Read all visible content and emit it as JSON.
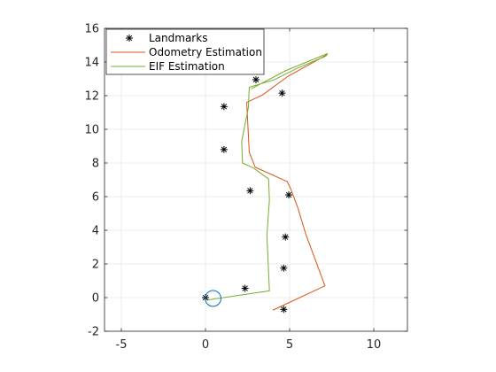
{
  "chart_data": {
    "type": "line",
    "title": "",
    "xlabel": "",
    "ylabel": "",
    "xlim": [
      -6,
      12
    ],
    "ylim": [
      -2,
      16
    ],
    "x_ticks": [
      -5,
      0,
      5,
      10
    ],
    "y_ticks": [
      -2,
      0,
      2,
      4,
      6,
      8,
      10,
      12,
      14,
      16
    ],
    "x_tick_labels": [
      "-5",
      "0",
      "5",
      "10"
    ],
    "y_tick_labels": [
      "-2",
      "0",
      "2",
      "4",
      "6",
      "8",
      "10",
      "12",
      "14",
      "16"
    ],
    "grid": true,
    "legend_position": "top-left",
    "colors": {
      "axis": "#262626",
      "grid": "#e6e6e6",
      "landmarks": "#000000",
      "odometry": "#d95319",
      "eif": "#77ac30",
      "robot": "#0072bd"
    },
    "legend": [
      {
        "label": "Landmarks",
        "key": "landmarks"
      },
      {
        "label": "Odometry Estimation",
        "key": "odometry"
      },
      {
        "label": "EIF Estimation",
        "key": "eif"
      }
    ],
    "landmarks": {
      "name": "Landmarks",
      "marker": "asterisk",
      "points": [
        {
          "x": 0.0,
          "y": 0.0
        },
        {
          "x": 2.35,
          "y": 0.55
        },
        {
          "x": 4.65,
          "y": -0.7
        },
        {
          "x": 4.65,
          "y": 1.75
        },
        {
          "x": 4.75,
          "y": 3.6
        },
        {
          "x": 4.95,
          "y": 6.1
        },
        {
          "x": 2.65,
          "y": 6.35
        },
        {
          "x": 1.1,
          "y": 8.8
        },
        {
          "x": 1.1,
          "y": 11.35
        },
        {
          "x": 4.55,
          "y": 12.15
        },
        {
          "x": 3.0,
          "y": 12.95
        }
      ]
    },
    "series": [
      {
        "name": "Odometry Estimation",
        "key": "odometry",
        "x": [
          4.0,
          7.1,
          5.95,
          5.5,
          5.05,
          4.85,
          2.95,
          2.6,
          2.45,
          3.4,
          4.9,
          7.25
        ],
        "y": [
          -0.75,
          0.7,
          3.8,
          5.3,
          6.5,
          6.9,
          7.75,
          8.65,
          11.6,
          12.05,
          13.15,
          14.45
        ]
      },
      {
        "name": "EIF Estimation",
        "key": "eif",
        "x": [
          0.05,
          3.8,
          3.65,
          3.8,
          3.75,
          2.85,
          2.2,
          2.15,
          2.55,
          2.6,
          4.1,
          5.4,
          7.15,
          7.25,
          4.8,
          2.7
        ],
        "y": [
          -0.15,
          0.4,
          3.7,
          5.8,
          7.05,
          7.7,
          8.0,
          9.3,
          11.3,
          12.5,
          12.95,
          13.6,
          14.35,
          14.5,
          13.5,
          12.4
        ]
      }
    ],
    "robot": {
      "name": "robot-pose",
      "x": 0.45,
      "y": -0.05,
      "radius": 0.47
    }
  }
}
